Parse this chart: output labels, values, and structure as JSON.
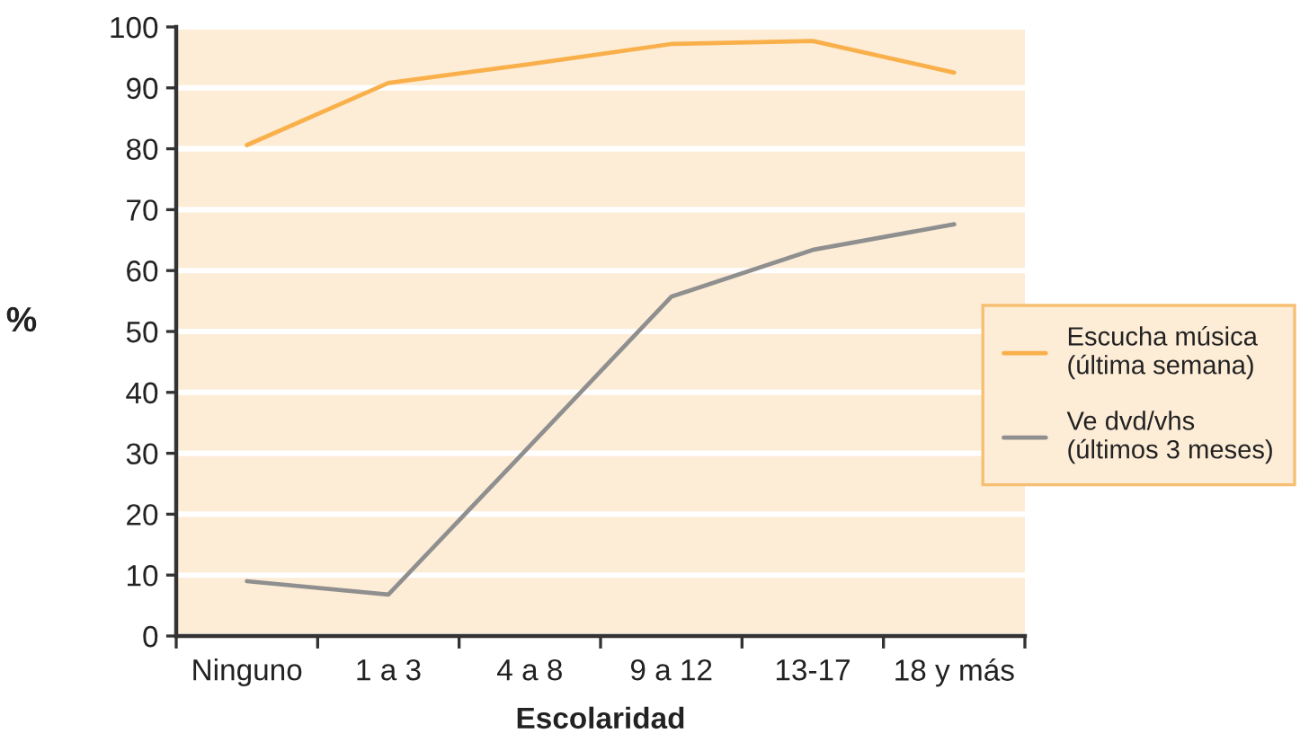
{
  "chart_data": {
    "type": "line",
    "xlabel": "Escolaridad",
    "ylabel": "%",
    "categories": [
      "Ninguno",
      "1 a 3",
      "4 a 8",
      "9 a 12",
      "13-17",
      "18 y más"
    ],
    "series": [
      {
        "name": "Escucha música\n(última semana)",
        "color": "#f9b04a",
        "values": [
          80.6,
          90.8,
          93.9,
          97.2,
          97.7,
          92.5
        ]
      },
      {
        "name": "Ve dvd/vhs\n(últimos 3 meses)",
        "color": "#8f8f8f",
        "values": [
          9.0,
          6.8,
          31.2,
          55.7,
          63.4,
          67.6
        ]
      }
    ],
    "ylim": [
      0,
      100
    ],
    "yticks": [
      0,
      10,
      20,
      30,
      40,
      50,
      60,
      70,
      80,
      90,
      100
    ],
    "grid": "y",
    "legend": "right",
    "marker": "none",
    "line_style": "solid"
  }
}
